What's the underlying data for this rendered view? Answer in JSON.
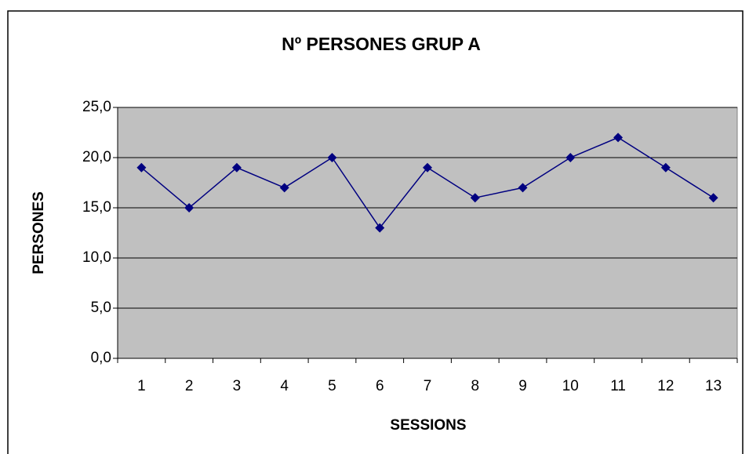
{
  "chart_data": {
    "type": "line",
    "title": "Nº PERSONES GRUP A",
    "xlabel": "SESSIONS",
    "ylabel": "PERSONES",
    "categories": [
      "1",
      "2",
      "3",
      "4",
      "5",
      "6",
      "7",
      "8",
      "9",
      "10",
      "11",
      "12",
      "13"
    ],
    "series": [
      {
        "name": "Nº PERSONES GRUP A",
        "color": "#000080",
        "values": [
          19,
          15,
          19,
          17,
          20,
          13,
          19,
          16,
          17,
          20,
          22,
          19,
          16
        ]
      }
    ],
    "ylim": [
      0,
      25
    ],
    "yticks": [
      {
        "value": 0,
        "label": "0,0"
      },
      {
        "value": 5,
        "label": "5,0"
      },
      {
        "value": 10,
        "label": "10,0"
      },
      {
        "value": 15,
        "label": "15,0"
      },
      {
        "value": 20,
        "label": "20,0"
      },
      {
        "value": 25,
        "label": "25,0"
      }
    ],
    "grid": true,
    "background": "#c0c0c0"
  }
}
